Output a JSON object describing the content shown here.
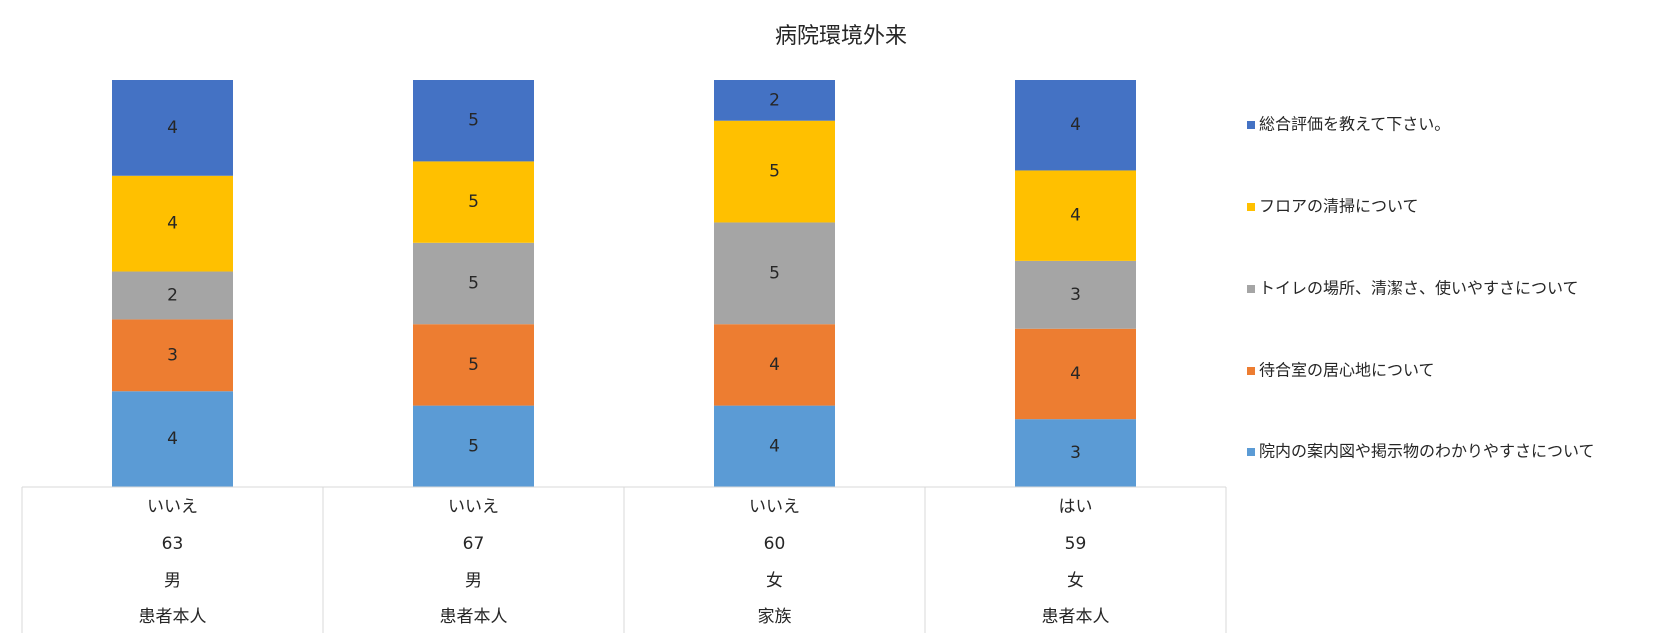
{
  "chart_data": {
    "type": "bar",
    "stacking": "percent",
    "title": "病院環境外来",
    "categories": [
      [
        "いいえ",
        "63",
        "男",
        "患者本人"
      ],
      [
        "いいえ",
        "67",
        "男",
        "患者本人"
      ],
      [
        "いいえ",
        "60",
        "女",
        "家族"
      ],
      [
        "はい",
        "59",
        "女",
        "患者本人"
      ]
    ],
    "series": [
      {
        "name": "院内の案内図や掲示物のわかりやすさについて",
        "color": "#5b9bd5",
        "label_color": "#ffffff",
        "values": [
          4,
          5,
          4,
          3
        ]
      },
      {
        "name": "待合室の居心地について",
        "color": "#ed7d31",
        "label_color": "#ffffff",
        "values": [
          3,
          5,
          4,
          4
        ]
      },
      {
        "name": "トイレの場所、清潔さ、使いやすさについて",
        "color": "#a5a5a5",
        "label_color": "#262626",
        "values": [
          2,
          5,
          5,
          3
        ]
      },
      {
        "name": "フロアの清掃について",
        "color": "#ffc000",
        "label_color": "#262626",
        "values": [
          4,
          5,
          5,
          4
        ]
      },
      {
        "name": "総合評価を教えて下さい。",
        "color": "#4472c4",
        "label_color": "#ffffff",
        "values": [
          4,
          5,
          2,
          4
        ]
      }
    ],
    "legend": "right"
  }
}
